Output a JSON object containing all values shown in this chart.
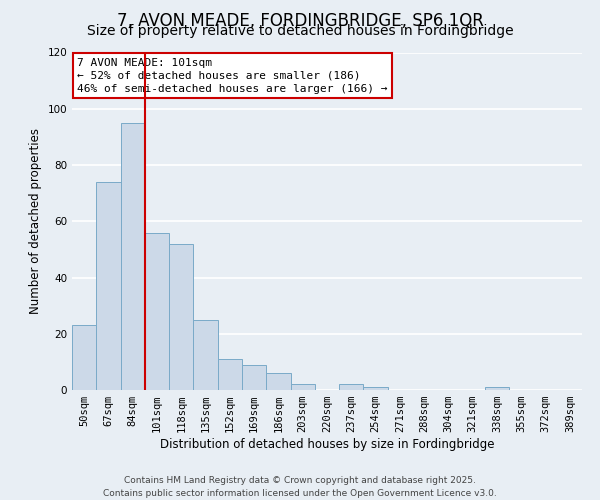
{
  "title": "7, AVON MEADE, FORDINGBRIDGE, SP6 1QR",
  "subtitle": "Size of property relative to detached houses in Fordingbridge",
  "xlabel": "Distribution of detached houses by size in Fordingbridge",
  "ylabel": "Number of detached properties",
  "bar_labels": [
    "50sqm",
    "67sqm",
    "84sqm",
    "101sqm",
    "118sqm",
    "135sqm",
    "152sqm",
    "169sqm",
    "186sqm",
    "203sqm",
    "220sqm",
    "237sqm",
    "254sqm",
    "271sqm",
    "288sqm",
    "304sqm",
    "321sqm",
    "338sqm",
    "355sqm",
    "372sqm",
    "389sqm"
  ],
  "bar_values": [
    23,
    74,
    95,
    56,
    52,
    25,
    11,
    9,
    6,
    2,
    0,
    2,
    1,
    0,
    0,
    0,
    0,
    1,
    0,
    0,
    0
  ],
  "bar_color": "#ccd9e8",
  "bar_edgecolor": "#7aaac8",
  "vline_color": "#cc0000",
  "ylim": [
    0,
    120
  ],
  "yticks": [
    0,
    20,
    40,
    60,
    80,
    100,
    120
  ],
  "annotation_title": "7 AVON MEADE: 101sqm",
  "annotation_line1": "← 52% of detached houses are smaller (186)",
  "annotation_line2": "46% of semi-detached houses are larger (166) →",
  "annotation_box_color": "#ffffff",
  "annotation_box_edgecolor": "#cc0000",
  "footer_line1": "Contains HM Land Registry data © Crown copyright and database right 2025.",
  "footer_line2": "Contains public sector information licensed under the Open Government Licence v3.0.",
  "background_color": "#e8eef4",
  "plot_bg_color": "#e8eef4",
  "grid_color": "#ffffff",
  "title_fontsize": 12,
  "subtitle_fontsize": 10,
  "axis_label_fontsize": 8.5,
  "tick_fontsize": 7.5,
  "annotation_fontsize": 8,
  "footer_fontsize": 6.5
}
